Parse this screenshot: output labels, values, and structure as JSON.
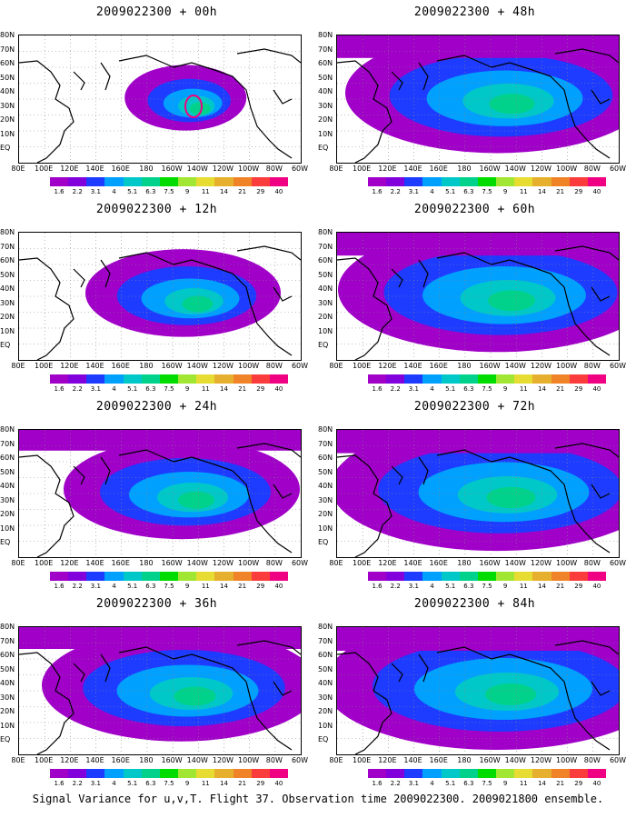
{
  "panels": [
    {
      "title": "2009022300 + 00h",
      "lead": "00h",
      "spread": 0.18,
      "peak": 0.55
    },
    {
      "title": "2009022300 + 12h",
      "lead": "12h",
      "spread": 0.45,
      "peak": 0.25
    },
    {
      "title": "2009022300 + 24h",
      "lead": "24h",
      "spread": 0.6,
      "peak": 0.3
    },
    {
      "title": "2009022300 + 36h",
      "lead": "36h",
      "spread": 0.75,
      "peak": 0.35
    },
    {
      "title": "2009022300 + 48h",
      "lead": "48h",
      "spread": 0.85,
      "peak": 0.35
    },
    {
      "title": "2009022300 + 60h",
      "lead": "60h",
      "spread": 0.9,
      "peak": 0.4
    },
    {
      "title": "2009022300 + 72h",
      "lead": "72h",
      "spread": 0.95,
      "peak": 0.45
    },
    {
      "title": "2009022300 + 84h",
      "lead": "84h",
      "spread": 1.0,
      "peak": 0.5
    }
  ],
  "lat_labels": [
    "80N",
    "70N",
    "60N",
    "50N",
    "40N",
    "30N",
    "20N",
    "10N",
    "EQ"
  ],
  "lon_labels": [
    "80E",
    "100E",
    "120E",
    "140E",
    "160E",
    "180",
    "160W",
    "140W",
    "120W",
    "100W",
    "80W",
    "60W"
  ],
  "colorbar": {
    "labels": [
      "1.6",
      "2.2",
      "3.1",
      "4",
      "5.1",
      "6.3",
      "7.5",
      "9",
      "11",
      "14",
      "21",
      "29",
      "40"
    ],
    "colors": [
      "#a000c8",
      "#8200dc",
      "#1e3cff",
      "#00a0ff",
      "#00c8c8",
      "#00d28c",
      "#00dc00",
      "#a0e632",
      "#e6dc32",
      "#e6af2d",
      "#f08228",
      "#fa3c3c",
      "#f00082"
    ]
  },
  "caption": "Signal Variance for u,v,T. Flight 37. Observation time 2009022300. 2009021800 ensemble."
}
